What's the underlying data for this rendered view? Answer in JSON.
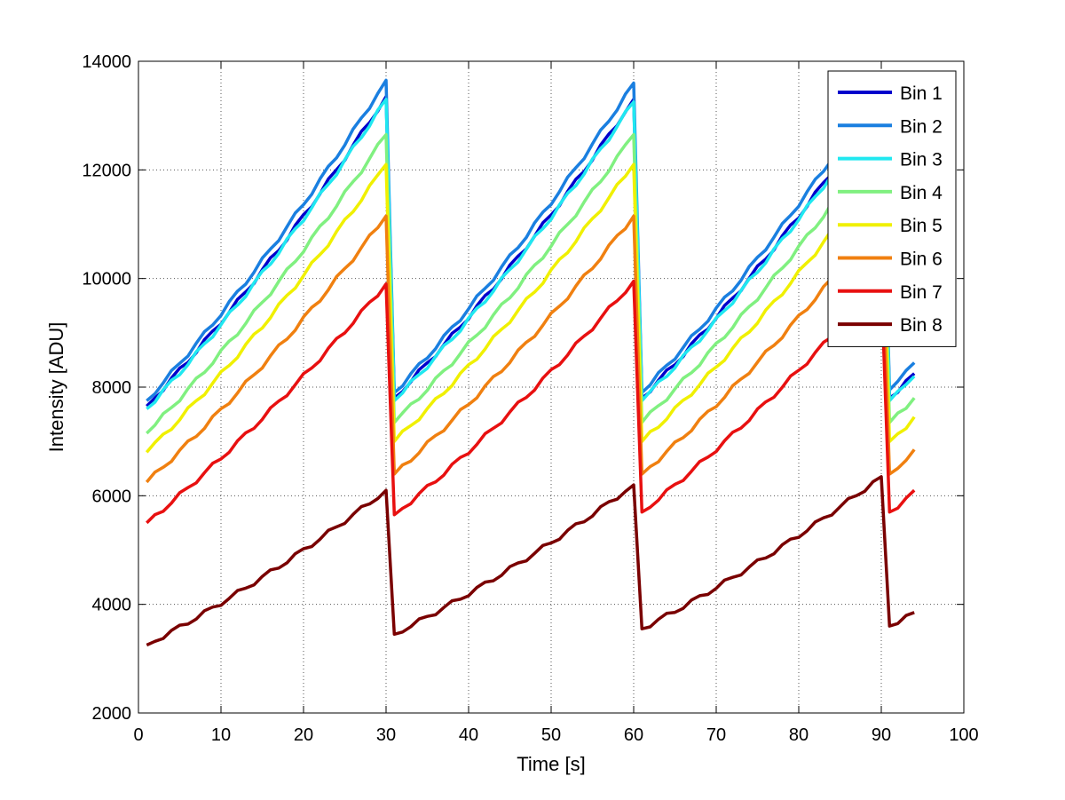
{
  "chart_data": {
    "type": "line",
    "title": "",
    "xlabel": "Time [s]",
    "ylabel": "Intensity [ADU]",
    "xlim": [
      0,
      100
    ],
    "ylim": [
      2000,
      14000
    ],
    "xticks": [
      0,
      10,
      20,
      30,
      40,
      50,
      60,
      70,
      80,
      90,
      100
    ],
    "yticks": [
      2000,
      4000,
      6000,
      8000,
      10000,
      12000,
      14000
    ],
    "grid": true,
    "legend_position": "top-right",
    "x": [
      1,
      30,
      31,
      60,
      61,
      90,
      91,
      94
    ],
    "series": [
      {
        "name": "Bin 1",
        "color": "#0000cc",
        "values": [
          7650,
          13350,
          7800,
          13300,
          7800,
          13250,
          7800,
          8250
        ]
      },
      {
        "name": "Bin 2",
        "color": "#1a7fe0",
        "values": [
          7750,
          13650,
          7900,
          13600,
          7900,
          13550,
          7950,
          8450
        ]
      },
      {
        "name": "Bin 3",
        "color": "#20e8f0",
        "values": [
          7600,
          13300,
          7750,
          13250,
          7750,
          13200,
          7750,
          8200
        ]
      },
      {
        "name": "Bin 4",
        "color": "#80f080",
        "values": [
          7150,
          12650,
          7350,
          12650,
          7350,
          12600,
          7350,
          7800
        ]
      },
      {
        "name": "Bin 5",
        "color": "#f0f000",
        "values": [
          6800,
          12100,
          7000,
          12100,
          7000,
          12050,
          7000,
          7450
        ]
      },
      {
        "name": "Bin 6",
        "color": "#f08010",
        "values": [
          6250,
          11150,
          6400,
          11150,
          6400,
          11100,
          6400,
          6850
        ]
      },
      {
        "name": "Bin 7",
        "color": "#e81010",
        "values": [
          5500,
          9900,
          5650,
          9950,
          5700,
          9950,
          5700,
          6100
        ]
      },
      {
        "name": "Bin 8",
        "color": "#7a0000",
        "values": [
          3250,
          6100,
          3450,
          6200,
          3550,
          6350,
          3600,
          3850
        ]
      }
    ]
  }
}
